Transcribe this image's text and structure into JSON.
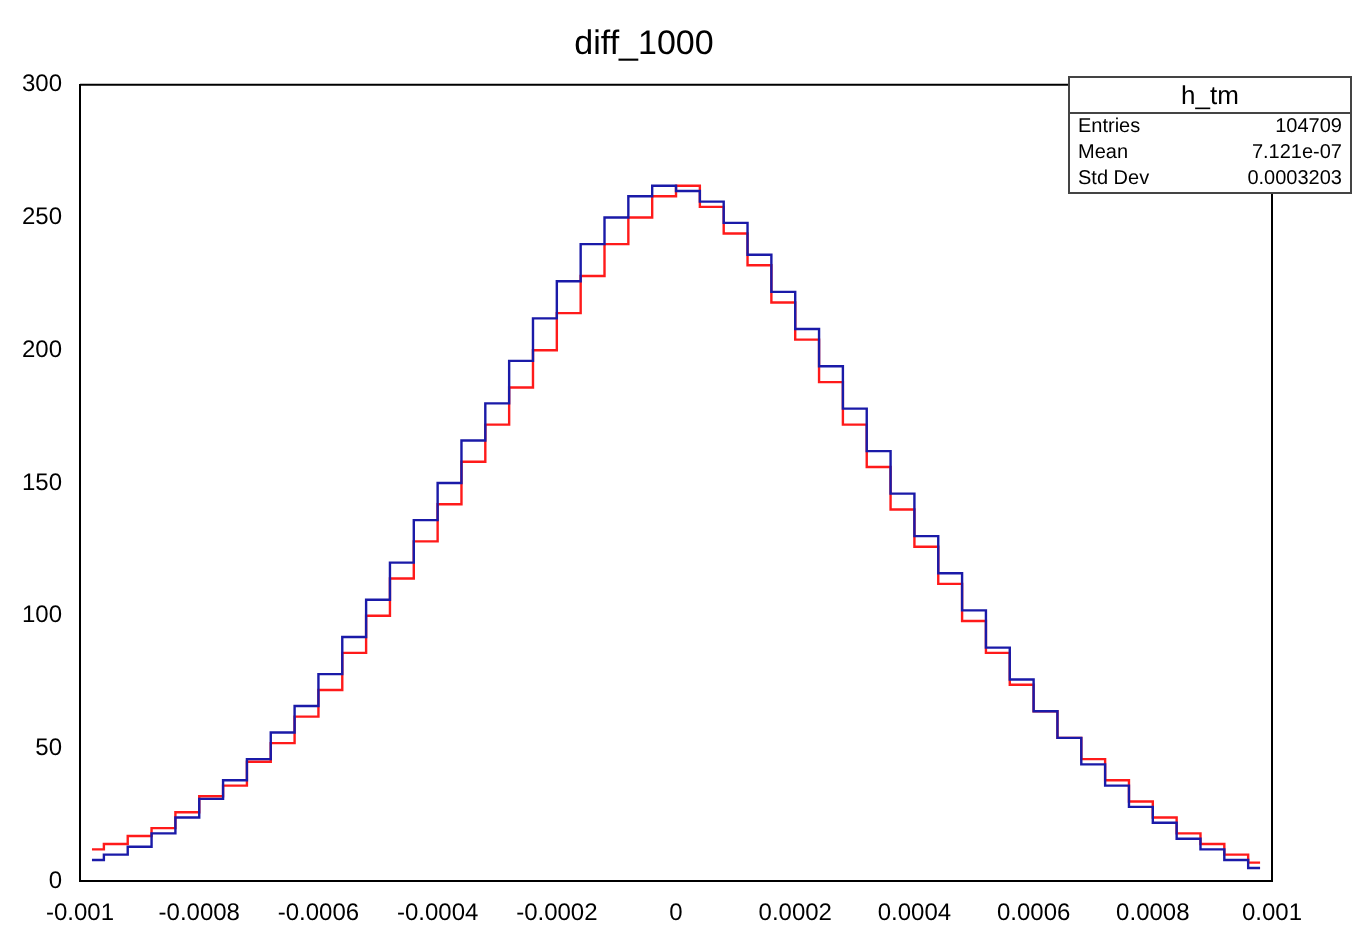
{
  "chart_data": {
    "type": "step",
    "title": "diff_1000",
    "x": [
      -0.00098,
      -0.00094,
      -0.0009,
      -0.00086,
      -0.00082,
      -0.00078,
      -0.00074,
      -0.0007,
      -0.00066,
      -0.00062,
      -0.00058,
      -0.00054,
      -0.0005,
      -0.00046,
      -0.00042,
      -0.00038,
      -0.00034,
      -0.0003,
      -0.00026,
      -0.00022,
      -0.00018,
      -0.00014,
      -0.0001,
      -6e-05,
      -2e-05,
      2e-05,
      6e-05,
      0.0001,
      0.00014,
      0.00018,
      0.00022,
      0.00026,
      0.0003,
      0.00034,
      0.00038,
      0.00042,
      0.00046,
      0.0005,
      0.00054,
      0.00058,
      0.00062,
      0.00066,
      0.0007,
      0.00074,
      0.00078,
      0.00082,
      0.00086,
      0.0009,
      0.00094,
      0.00098
    ],
    "series": [
      {
        "color": "#1a1aa8",
        "values": [
          8,
          10,
          13,
          18,
          24,
          31,
          38,
          46,
          56,
          66,
          78,
          92,
          106,
          120,
          136,
          150,
          166,
          180,
          196,
          212,
          226,
          240,
          250,
          258,
          262,
          260,
          256,
          248,
          236,
          222,
          208,
          194,
          178,
          162,
          146,
          130,
          116,
          102,
          88,
          76,
          64,
          54,
          44,
          36,
          28,
          22,
          16,
          12,
          8,
          5
        ]
      },
      {
        "color": "#ff1a1a",
        "values": [
          12,
          14,
          17,
          20,
          26,
          32,
          36,
          45,
          52,
          62,
          72,
          86,
          100,
          114,
          128,
          142,
          158,
          172,
          186,
          200,
          214,
          228,
          240,
          250,
          258,
          262,
          254,
          244,
          232,
          218,
          204,
          188,
          172,
          156,
          140,
          126,
          112,
          98,
          86,
          74,
          64,
          54,
          46,
          38,
          30,
          24,
          18,
          14,
          10,
          7
        ]
      }
    ],
    "xlim": [
      -0.001,
      0.001
    ],
    "xticks": [
      -0.001,
      -0.0008,
      -0.0006,
      -0.0004,
      -0.0002,
      0,
      0.0002,
      0.0004,
      0.0006,
      0.0008,
      0.001
    ],
    "ylim": [
      0,
      300
    ],
    "yticks": [
      0,
      50,
      100,
      150,
      200,
      250,
      300
    ],
    "annotations": [
      "h_tm",
      "Entries",
      "104709",
      "Mean",
      "7.121e-07",
      "Std Dev",
      "0.0003203"
    ],
    "grid": false,
    "legend": false
  }
}
